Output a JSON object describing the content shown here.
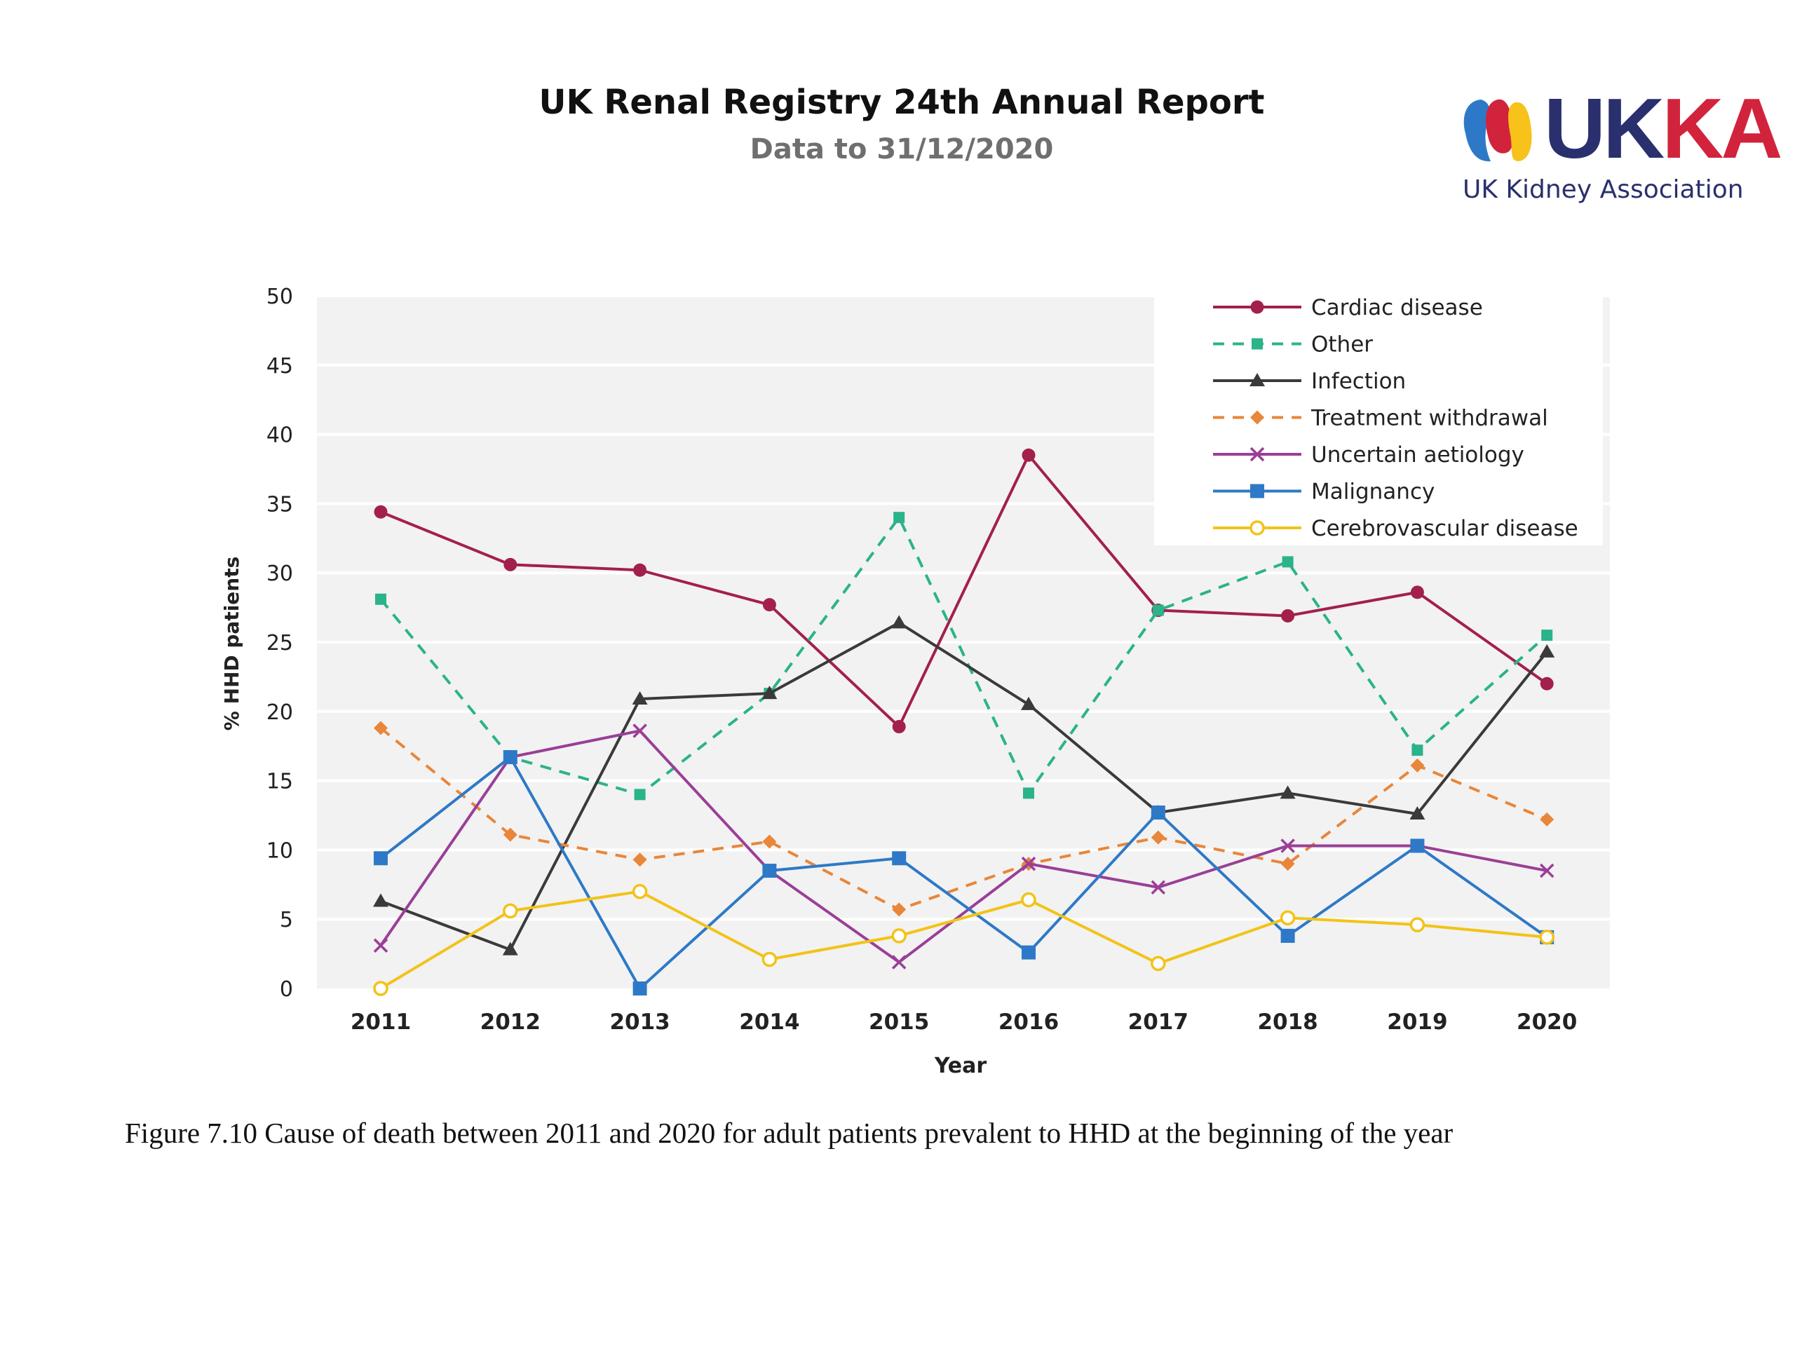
{
  "header": {
    "title": "UK Renal Registry 24th Annual Report",
    "subtitle": "Data to 31/12/2020"
  },
  "logo": {
    "text": "UKKA",
    "subtext": "UK Kidney Association",
    "colors": {
      "text": "#2a2f6d",
      "text_accent": "#d2233c",
      "mark_blue": "#2e79c7",
      "mark_red": "#d2233c",
      "mark_yellow": "#f7c21a"
    }
  },
  "chart_data": {
    "type": "line",
    "title": "",
    "xlabel": "Year",
    "ylabel": "% HHD patients",
    "x": [
      "2011",
      "2012",
      "2013",
      "2014",
      "2015",
      "2016",
      "2017",
      "2018",
      "2019",
      "2020"
    ],
    "ylim": [
      0,
      50
    ],
    "yticks": [
      0,
      5,
      10,
      15,
      20,
      25,
      30,
      35,
      40,
      45,
      50
    ],
    "grid": true,
    "legend_position": "top-right",
    "series": [
      {
        "name": "Cardiac disease",
        "color": "#a3204a",
        "dash": "solid",
        "marker": "circle",
        "values": [
          34.4,
          30.6,
          30.2,
          27.7,
          18.9,
          38.5,
          27.3,
          26.9,
          28.6,
          22.0
        ]
      },
      {
        "name": "Other",
        "color": "#2bb38a",
        "dash": "dashed",
        "marker": "square",
        "values": [
          28.1,
          16.7,
          14.0,
          21.3,
          34.0,
          14.1,
          27.3,
          30.8,
          17.2,
          25.5
        ]
      },
      {
        "name": "Infection",
        "color": "#3a3a3a",
        "dash": "solid",
        "marker": "triangle",
        "values": [
          6.3,
          2.8,
          20.9,
          21.3,
          26.4,
          20.5,
          12.7,
          14.1,
          12.6,
          24.3
        ]
      },
      {
        "name": "Treatment withdrawal",
        "color": "#e8863a",
        "dash": "dashed",
        "marker": "diamond",
        "values": [
          18.8,
          11.1,
          9.3,
          10.6,
          5.7,
          9.0,
          10.9,
          9.0,
          16.1,
          12.2
        ]
      },
      {
        "name": "Uncertain aetiology",
        "color": "#9a3f97",
        "dash": "solid",
        "marker": "x",
        "values": [
          3.1,
          16.7,
          18.6,
          8.5,
          1.9,
          9.0,
          7.3,
          10.3,
          10.3,
          8.5
        ]
      },
      {
        "name": "Malignancy",
        "color": "#2e79c7",
        "dash": "solid",
        "marker": "filled-square",
        "values": [
          9.4,
          16.7,
          0.0,
          8.5,
          9.4,
          2.6,
          12.7,
          3.8,
          10.3,
          3.7
        ]
      },
      {
        "name": "Cerebrovascular disease",
        "color": "#f2c318",
        "dash": "solid",
        "marker": "open-circle",
        "values": [
          0.0,
          5.6,
          7.0,
          2.1,
          3.8,
          6.4,
          1.8,
          5.1,
          4.6,
          3.7
        ]
      }
    ]
  },
  "caption": "Figure 7.10 Cause of death between 2011 and 2020 for adult patients prevalent to HHD at the beginning of the year"
}
